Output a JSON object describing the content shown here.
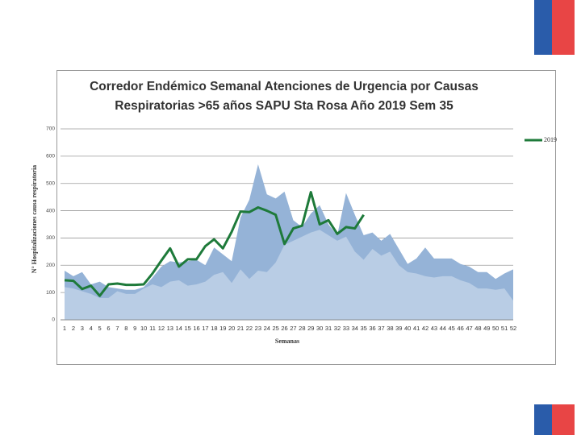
{
  "chart_data": {
    "type": "area",
    "title": [
      "Corredor Endémico Semanal Atenciones de Urgencia por Causas",
      "Respiratorias >65 años SAPU Sta Rosa  Año 2019 Sem 35"
    ],
    "xlabel": "Semanas",
    "ylabel": "N° Hospitalizaciones causa respiratoria",
    "categories": [
      "1",
      "2",
      "3",
      "4",
      "5",
      "6",
      "7",
      "8",
      "9",
      "10",
      "11",
      "12",
      "13",
      "14",
      "15",
      "16",
      "17",
      "18",
      "19",
      "20",
      "21",
      "22",
      "23",
      "24",
      "25",
      "26",
      "27",
      "28",
      "29",
      "30",
      "31",
      "32",
      "33",
      "34",
      "35",
      "36",
      "37",
      "38",
      "39",
      "40",
      "41",
      "42",
      "43",
      "44",
      "45",
      "46",
      "47",
      "48",
      "49",
      "50",
      "51",
      "52"
    ],
    "series": [
      {
        "type": "area",
        "color": "#95b3d7",
        "values": [
          180,
          160,
          175,
          130,
          140,
          120,
          115,
          110,
          110,
          120,
          155,
          195,
          215,
          210,
          215,
          220,
          200,
          265,
          240,
          215,
          375,
          440,
          570,
          460,
          445,
          470,
          365,
          340,
          390,
          420,
          350,
          310,
          465,
          385,
          310,
          320,
          290,
          315,
          260,
          205,
          225,
          265,
          225,
          225,
          225,
          205,
          195,
          175,
          175,
          150,
          170,
          185
        ]
      },
      {
        "type": "area",
        "color": "#b9cde5",
        "values": [
          120,
          115,
          105,
          95,
          80,
          80,
          105,
          95,
          95,
          115,
          130,
          120,
          140,
          145,
          125,
          130,
          140,
          165,
          175,
          135,
          185,
          150,
          180,
          175,
          210,
          275,
          290,
          305,
          320,
          330,
          310,
          290,
          305,
          250,
          220,
          260,
          235,
          250,
          200,
          175,
          170,
          160,
          155,
          160,
          160,
          145,
          135,
          115,
          115,
          110,
          115,
          70
        ]
      },
      {
        "type": "line",
        "name": "2019",
        "color": "#1e7a3a",
        "values": [
          145,
          143,
          113,
          125,
          88,
          130,
          133,
          128,
          128,
          130,
          170,
          217,
          262,
          195,
          222,
          222,
          270,
          295,
          262,
          323,
          397,
          395,
          412,
          400,
          385,
          278,
          335,
          345,
          468,
          350,
          365,
          315,
          340,
          335,
          385,
          null,
          null,
          null,
          null,
          null,
          null,
          null,
          null,
          null,
          null,
          null,
          null,
          null,
          null,
          null,
          null,
          null
        ]
      }
    ],
    "ylim": [
      0,
      700
    ],
    "yticks": [
      0,
      100,
      200,
      300,
      400,
      500,
      600,
      700
    ],
    "grid": true,
    "legend": "right"
  }
}
